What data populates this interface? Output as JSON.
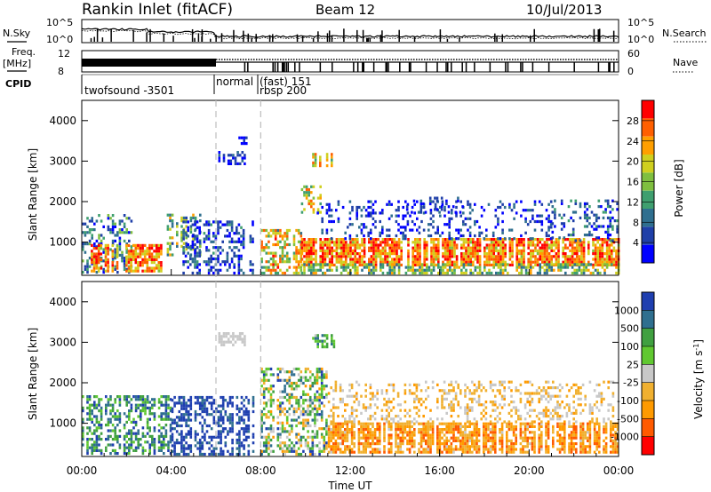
{
  "header": {
    "station": "Rankin Inlet (fitACF)",
    "beam": "Beam 12",
    "date": "10/Jul/2013"
  },
  "top_panels": {
    "nsky_label": "N.Sky",
    "nsearch_label": "N.Search",
    "nsky_ticks": [
      "10^5",
      "10^0"
    ],
    "nsearch_ticks": [
      "10^5",
      "10^0"
    ],
    "freq_label": "Freq.",
    "freq_unit": "[MHz]",
    "freq_ticks": [
      "12",
      "8"
    ],
    "nave_label": "Nave",
    "nave_ticks": [
      "60",
      "0"
    ],
    "cpid_label": "CPID",
    "cpid_entries": [
      {
        "text": "twofsound -3501"
      },
      {
        "text": "normal"
      },
      {
        "text": "(fast) 151"
      },
      {
        "text": "rbsp 200"
      }
    ]
  },
  "colors": {
    "power": [
      "#0000ff",
      "#1f3fa8",
      "#2f6f8f",
      "#3f9f6f",
      "#7fbf3f",
      "#cfcf1f",
      "#ff9f00",
      "#ff5f00",
      "#ff0000"
    ],
    "velocity": [
      "#ff0000",
      "#ff5a00",
      "#ff9a00",
      "#f0b030",
      "#c8c8c8",
      "#60c830",
      "#40a040",
      "#2f6f8f",
      "#1f3fb0"
    ]
  },
  "chart_data": [
    {
      "type": "heatmap",
      "name": "power",
      "ylabel": "Slant Range [km]",
      "ylim": [
        180,
        4500
      ],
      "yticks": [
        "1000",
        "2000",
        "3000",
        "4000"
      ],
      "xlim": [
        0,
        24
      ],
      "colorbar": {
        "label": "Power [dB]",
        "ticks": [
          "28",
          "24",
          "20",
          "16",
          "12",
          "8",
          "4"
        ],
        "range": [
          0,
          30
        ]
      },
      "approx_regions": [
        {
          "t": [
            0.0,
            2.0
          ],
          "range_km": [
            200,
            1600
          ],
          "level": "low-mid"
        },
        {
          "t": [
            0.5,
            3.5
          ],
          "range_km": [
            250,
            900
          ],
          "level": "high"
        },
        {
          "t": [
            3.8,
            5.2
          ],
          "range_km": [
            700,
            1600
          ],
          "level": "mid"
        },
        {
          "t": [
            4.5,
            7.5
          ],
          "range_km": [
            200,
            1400
          ],
          "level": "low"
        },
        {
          "t": [
            6.1,
            7.3
          ],
          "range_km": [
            2900,
            3300
          ],
          "level": "low"
        },
        {
          "t": [
            7.0,
            7.6
          ],
          "range_km": [
            3400,
            3600
          ],
          "level": "low"
        },
        {
          "t": [
            9.8,
            10.6
          ],
          "range_km": [
            1700,
            2300
          ],
          "level": "mid"
        },
        {
          "t": [
            10.2,
            11.4
          ],
          "range_km": [
            2800,
            3200
          ],
          "level": "mid"
        },
        {
          "t": [
            10.5,
            21.0
          ],
          "range_km": [
            1000,
            2000
          ],
          "level": "low"
        },
        {
          "t": [
            8.0,
            24.0
          ],
          "range_km": [
            200,
            1000
          ],
          "level": "high"
        },
        {
          "t": [
            21.0,
            24.0
          ],
          "range_km": [
            1000,
            2000
          ],
          "level": "low"
        }
      ]
    },
    {
      "type": "heatmap",
      "name": "velocity",
      "ylabel": "Slant Range [km]",
      "xlabel": "Time UT",
      "ylim": [
        180,
        4500
      ],
      "yticks": [
        "1000",
        "2000",
        "3000",
        "4000"
      ],
      "xticks": [
        "00:00",
        "04:00",
        "08:00",
        "12:00",
        "16:00",
        "20:00",
        "00:00"
      ],
      "xlim": [
        0,
        24
      ],
      "colorbar": {
        "label": "Velocity [m s-1]",
        "ticks": [
          "1000",
          "500",
          "100",
          "25",
          "-25",
          "-100",
          "-500",
          "-1000"
        ],
        "range": [
          -1000,
          1000
        ]
      },
      "approx_regions": [
        {
          "t": [
            0.0,
            4.0
          ],
          "range_km": [
            200,
            1600
          ],
          "velocity": "positive (toward)"
        },
        {
          "t": [
            4.0,
            7.5
          ],
          "range_km": [
            200,
            1600
          ],
          "velocity": "strong positive"
        },
        {
          "t": [
            6.1,
            7.3
          ],
          "range_km": [
            2900,
            3300
          ],
          "velocity": "near zero"
        },
        {
          "t": [
            8.0,
            11.0
          ],
          "range_km": [
            200,
            2300
          ],
          "velocity": "mixed"
        },
        {
          "t": [
            11.0,
            24.0
          ],
          "range_km": [
            200,
            1000
          ],
          "velocity": "negative (away)"
        },
        {
          "t": [
            11.0,
            24.0
          ],
          "range_km": [
            1000,
            2000
          ],
          "velocity": "near zero / slightly negative"
        }
      ]
    }
  ],
  "mode_change_times": [
    6.0,
    8.0
  ]
}
